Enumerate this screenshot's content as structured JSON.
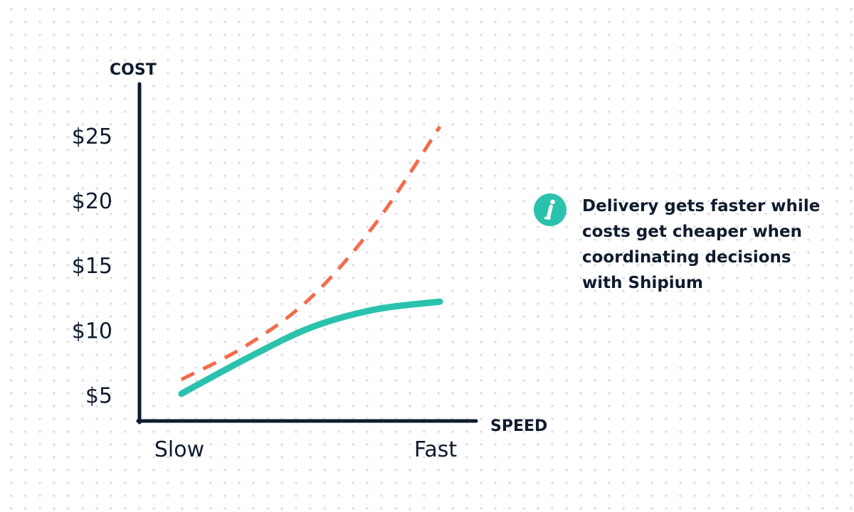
{
  "chart_data": {
    "type": "line",
    "title": "",
    "xlabel": "SPEED",
    "ylabel": "COST",
    "x": [
      "Slow",
      "Fast"
    ],
    "x_ticks": [
      "Slow",
      "Fast"
    ],
    "y_ticks": [
      "$5",
      "$10",
      "$15",
      "$20",
      "$25"
    ],
    "y_tick_values": [
      5,
      10,
      15,
      20,
      25
    ],
    "ylim": [
      3,
      29
    ],
    "grid": false,
    "legend": "none",
    "series": [
      {
        "style": "dashed",
        "color": "#f56a4b",
        "points": [
          [
            0,
            6.2
          ],
          [
            0.25,
            8.8
          ],
          [
            0.5,
            12.5
          ],
          [
            0.75,
            18.2
          ],
          [
            1,
            25.7
          ]
        ]
      },
      {
        "style": "solid",
        "color": "#2bc2ad",
        "points": [
          [
            0,
            5.1
          ],
          [
            0.25,
            7.8
          ],
          [
            0.5,
            10.2
          ],
          [
            0.75,
            11.6
          ],
          [
            1,
            12.2
          ]
        ]
      }
    ]
  },
  "callout": {
    "icon": "info-icon",
    "icon_color": "#2bc2ad",
    "text": "Delivery gets faster while costs get cheaper when coordinating decisions with Shipium"
  }
}
